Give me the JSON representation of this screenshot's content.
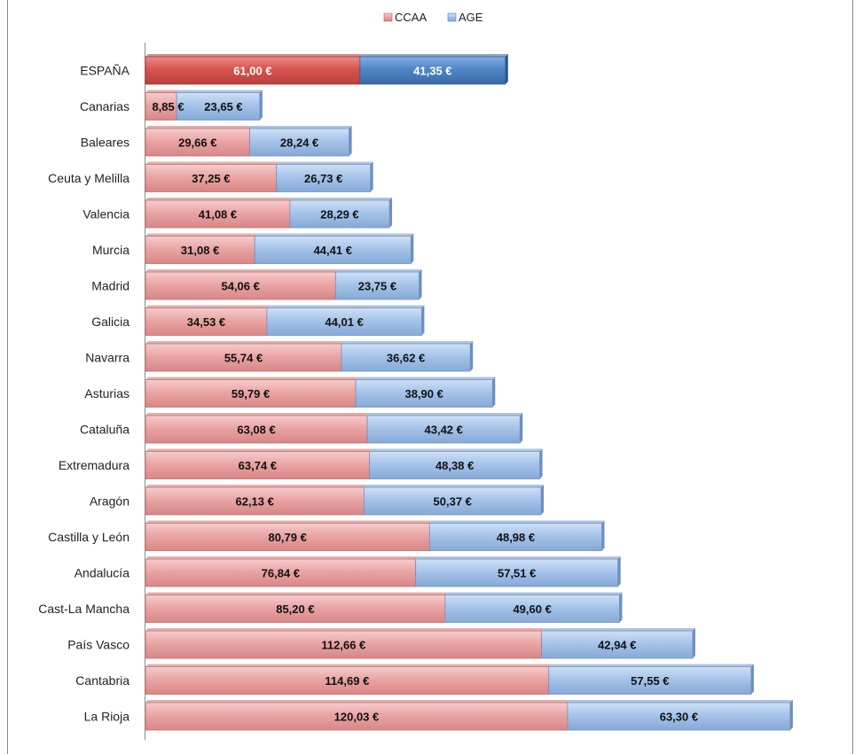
{
  "chart_data": {
    "type": "bar",
    "orientation": "horizontal",
    "stacked": true,
    "title": "",
    "xlabel": "",
    "ylabel": "",
    "unit_suffix": " €",
    "xlim": [
      0,
      184
    ],
    "grid": false,
    "legend_position": "top",
    "categories": [
      "ESPAÑA",
      "Canarias",
      "Baleares",
      "Ceuta y Melilla",
      "Valencia",
      "Murcia",
      "Madrid",
      "Galicia",
      "Navarra",
      "Asturias",
      "Cataluña",
      "Extremadura",
      "Aragón",
      "Castilla y León",
      "Andalucía",
      "Cast-La Mancha",
      "País Vasco",
      "Cantabria",
      "La Rioja"
    ],
    "series": [
      {
        "name": "CCAA",
        "color": "#e8a3a3",
        "highlight_color": "#d9534f",
        "values": [
          61.0,
          8.85,
          29.66,
          37.25,
          41.08,
          31.08,
          54.06,
          34.53,
          55.74,
          59.79,
          63.08,
          63.74,
          62.13,
          80.79,
          76.84,
          85.2,
          112.66,
          114.69,
          120.03
        ],
        "labels": [
          "61,00 €",
          "8,85 €",
          "29,66 €",
          "37,25 €",
          "41,08 €",
          "31,08 €",
          "54,06 €",
          "34,53 €",
          "55,74 €",
          "59,79 €",
          "63,08 €",
          "63,74 €",
          "62,13 €",
          "80,79 €",
          "76,84 €",
          "85,20 €",
          "112,66 €",
          "114,69 €",
          "120,03 €"
        ]
      },
      {
        "name": "AGE",
        "color": "#a4c2e8",
        "highlight_color": "#4f86c6",
        "values": [
          41.35,
          23.65,
          28.24,
          26.73,
          28.29,
          44.41,
          23.75,
          44.01,
          36.62,
          38.9,
          43.42,
          48.38,
          50.37,
          48.98,
          57.51,
          49.6,
          42.94,
          57.55,
          63.3
        ],
        "labels": [
          "41,35 €",
          "23,65 €",
          "28,24 €",
          "26,73 €",
          "28,29 €",
          "44,41 €",
          "23,75 €",
          "44,01 €",
          "36,62 €",
          "38,90 €",
          "43,42 €",
          "48,38 €",
          "50,37 €",
          "48,98 €",
          "57,51 €",
          "49,60 €",
          "42,94 €",
          "57,55 €",
          "63,30 €"
        ]
      }
    ],
    "highlight_category": "ESPAÑA"
  }
}
